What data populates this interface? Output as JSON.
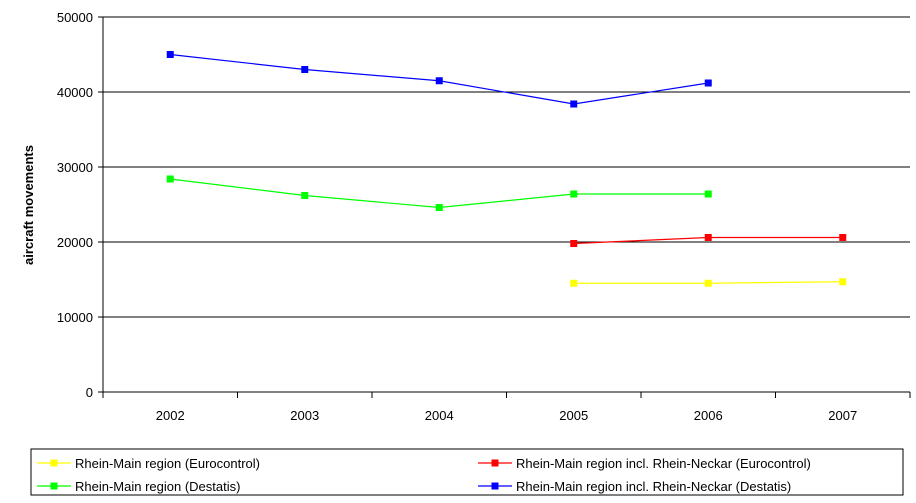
{
  "chart_data": {
    "type": "line",
    "x": [
      "2002",
      "2003",
      "2004",
      "2005",
      "2006",
      "2007"
    ],
    "ylabel": "aircraft movements",
    "ylim": [
      0,
      50000
    ],
    "yticks": [
      "0",
      "10000",
      "20000",
      "30000",
      "40000",
      "50000"
    ],
    "grid": "horizontal",
    "legend_position": "bottom",
    "series": [
      {
        "name": "Rhein-Main region (Eurocontrol)",
        "color": "#ffff00",
        "values": [
          null,
          null,
          null,
          14500,
          14500,
          14700
        ]
      },
      {
        "name": "Rhein-Main region incl. Rhein-Neckar (Eurocontrol)",
        "color": "#ff0000",
        "values": [
          null,
          null,
          null,
          19800,
          20600,
          20600
        ]
      },
      {
        "name": "Rhein-Main region (Destatis)",
        "color": "#00ff00",
        "values": [
          28400,
          26200,
          24600,
          26400,
          26400,
          null
        ]
      },
      {
        "name": "Rhein-Main region incl. Rhein-Neckar (Destatis)",
        "color": "#0000ff",
        "values": [
          45000,
          43000,
          41500,
          38400,
          41200,
          null
        ]
      }
    ]
  }
}
